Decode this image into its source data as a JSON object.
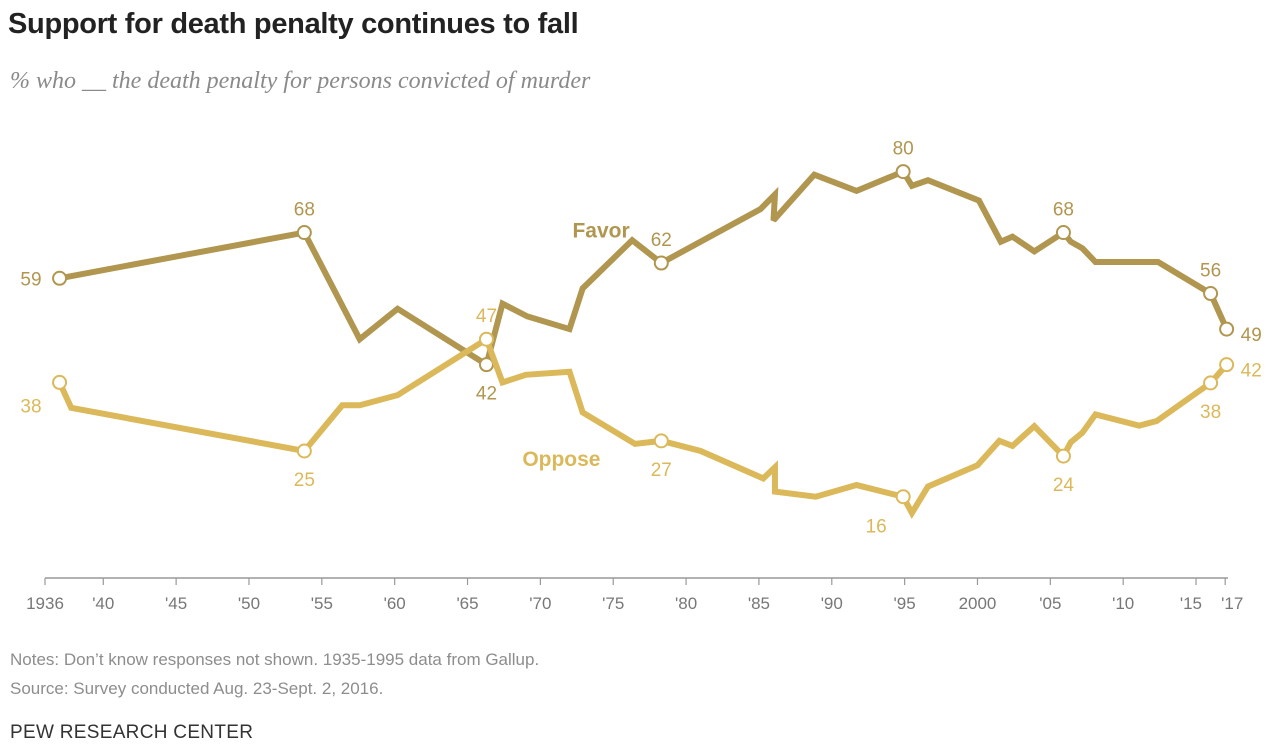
{
  "chart_data": {
    "type": "line",
    "title": "Support for death penalty continues to fall",
    "subtitle": "% who __ the death penalty for persons convicted of murder",
    "xlabel": "",
    "ylabel": "",
    "xlim": [
      1936,
      2017.3
    ],
    "ylim": [
      0,
      100
    ],
    "grid": false,
    "x_tick_labels": [
      {
        "year": 1936,
        "label": "1936"
      },
      {
        "year": 1940,
        "label": "'40"
      },
      {
        "year": 1945,
        "label": "'45"
      },
      {
        "year": 1950,
        "label": "'50"
      },
      {
        "year": 1955,
        "label": "'55"
      },
      {
        "year": 1960,
        "label": "'60"
      },
      {
        "year": 1965,
        "label": "'65"
      },
      {
        "year": 1970,
        "label": "'70"
      },
      {
        "year": 1975,
        "label": "'75"
      },
      {
        "year": 1980,
        "label": "'80"
      },
      {
        "year": 1985,
        "label": "'85"
      },
      {
        "year": 1990,
        "label": "'90"
      },
      {
        "year": 1995,
        "label": "'95"
      },
      {
        "year": 2000,
        "label": "2000"
      },
      {
        "year": 2005,
        "label": "'05"
      },
      {
        "year": 2010,
        "label": "'10"
      },
      {
        "year": 2015,
        "label": "'15"
      },
      {
        "year": 2017,
        "label": "'17"
      }
    ],
    "series": [
      {
        "name": "Favor",
        "color": "#b0964f",
        "label_at": {
          "year": 1977.5,
          "value": 67
        },
        "points": [
          [
            1937,
            59
          ],
          [
            1953.8,
            68
          ],
          [
            1957.6,
            47
          ],
          [
            1960.2,
            53
          ],
          [
            1966.3,
            42
          ],
          [
            1967.4,
            54
          ],
          [
            1969.1,
            51.5
          ],
          [
            1972,
            49
          ],
          [
            1972.9,
            57
          ],
          [
            1976.3,
            66.5
          ],
          [
            1978.3,
            62
          ],
          [
            1985.1,
            72.6
          ],
          [
            1986.1,
            75.5
          ],
          [
            1986,
            70.4
          ],
          [
            1988.8,
            79.4
          ],
          [
            1991.7,
            76.2
          ],
          [
            1994.9,
            80
          ],
          [
            1995.5,
            77.2
          ],
          [
            1996.6,
            78.3
          ],
          [
            2000.1,
            74.3
          ],
          [
            2001.6,
            66.2
          ],
          [
            2002.4,
            67.2
          ],
          [
            2003.9,
            64.3
          ],
          [
            2005.9,
            68
          ],
          [
            2006.4,
            66.2
          ],
          [
            2007.2,
            64.9
          ],
          [
            2008.1,
            62.2
          ],
          [
            2012.4,
            62.2
          ],
          [
            2016,
            56
          ],
          [
            2017.1,
            49
          ]
        ],
        "labels": [
          {
            "year": 1937,
            "value": 59,
            "text": "59",
            "pos": "left"
          },
          {
            "year": 1953.8,
            "value": 68,
            "text": "68",
            "pos": "above"
          },
          {
            "year": 1966.3,
            "value": 42,
            "text": "42",
            "pos": "below"
          },
          {
            "year": 1978.3,
            "value": 62,
            "text": "62",
            "pos": "above"
          },
          {
            "year": 1994.9,
            "value": 80,
            "text": "80",
            "pos": "above"
          },
          {
            "year": 2005.9,
            "value": 68,
            "text": "68",
            "pos": "above"
          },
          {
            "year": 2016,
            "value": 56,
            "text": "56",
            "pos": "above"
          },
          {
            "year": 2017.1,
            "value": 49,
            "text": "49",
            "pos": "right"
          }
        ]
      },
      {
        "name": "Oppose",
        "color": "#dbb95a",
        "label_at": {
          "year": 1975.5,
          "value": 22
        },
        "points": [
          [
            1937,
            38.5
          ],
          [
            1937.8,
            33.5
          ],
          [
            1953.8,
            25
          ],
          [
            1956.4,
            34
          ],
          [
            1957.6,
            34
          ],
          [
            1960.2,
            36
          ],
          [
            1966.3,
            47
          ],
          [
            1967.4,
            38.5
          ],
          [
            1969,
            40
          ],
          [
            1972,
            40.6
          ],
          [
            1972.9,
            32.6
          ],
          [
            1976.5,
            26.4
          ],
          [
            1978.3,
            27
          ],
          [
            1981,
            25
          ],
          [
            1985.3,
            19.6
          ],
          [
            1986.1,
            21.8
          ],
          [
            1986.1,
            17
          ],
          [
            1988.9,
            16
          ],
          [
            1991.7,
            18.3
          ],
          [
            1994.9,
            16
          ],
          [
            1995.5,
            12.8
          ],
          [
            1996.6,
            18
          ],
          [
            2000,
            22.2
          ],
          [
            2001.5,
            27
          ],
          [
            2002.4,
            26
          ],
          [
            2003.9,
            29.9
          ],
          [
            2005.9,
            24
          ],
          [
            2006.4,
            26.7
          ],
          [
            2007.2,
            28.6
          ],
          [
            2008.1,
            32.2
          ],
          [
            2011.1,
            30
          ],
          [
            2012.3,
            30.9
          ],
          [
            2016,
            38.4
          ],
          [
            2017.1,
            42
          ]
        ],
        "labels": [
          {
            "year": 1937,
            "value": 38.5,
            "text": "38",
            "pos": "left"
          },
          {
            "year": 1953.8,
            "value": 25,
            "text": "25",
            "pos": "below"
          },
          {
            "year": 1966.3,
            "value": 47,
            "text": "47",
            "pos": "above"
          },
          {
            "year": 1978.3,
            "value": 27,
            "text": "27",
            "pos": "below"
          },
          {
            "year": 1994.9,
            "value": 16,
            "text": "16",
            "pos": "below-left"
          },
          {
            "year": 2005.9,
            "value": 24,
            "text": "24",
            "pos": "below"
          },
          {
            "year": 2016,
            "value": 38.4,
            "text": "38",
            "pos": "below"
          },
          {
            "year": 2017.1,
            "value": 42,
            "text": "42",
            "pos": "right"
          }
        ]
      }
    ]
  },
  "notes": "Notes: Don’t know responses not shown. 1935-1995 data from Gallup.",
  "source": "Source: Survey conducted Aug. 23-Sept. 2, 2016.",
  "brand": "PEW RESEARCH CENTER"
}
